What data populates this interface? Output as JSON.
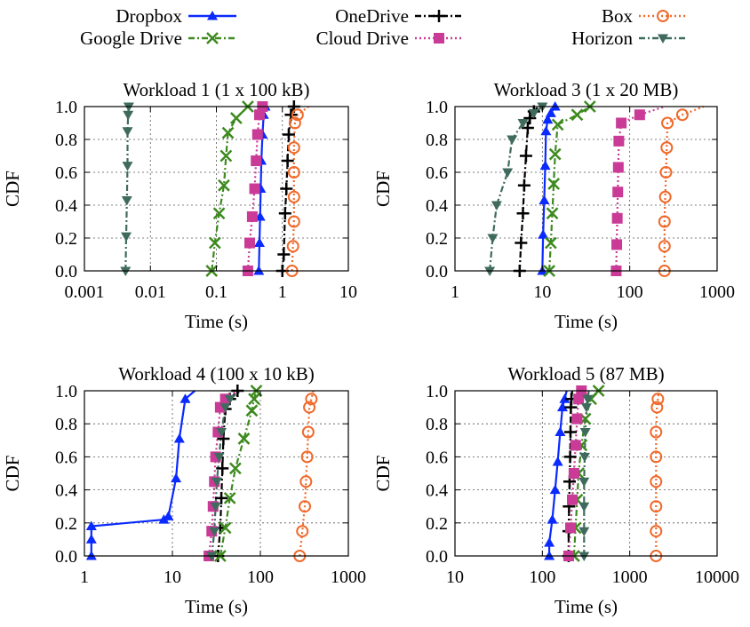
{
  "legend": {
    "items": [
      {
        "label": "Dropbox",
        "color": "#0a2aff",
        "marker": "triangle",
        "dash": "solid"
      },
      {
        "label": "OneDrive",
        "color": "#000000",
        "marker": "plus",
        "dash": "dashdot"
      },
      {
        "label": "Box",
        "color": "#f06a2c",
        "marker": "circle",
        "dash": "dotted"
      },
      {
        "label": "Google Drive",
        "color": "#3d8a1f",
        "marker": "cross",
        "dash": "dashdot"
      },
      {
        "label": "Cloud Drive",
        "color": "#c93b96",
        "marker": "square",
        "dash": "dotted"
      },
      {
        "label": "Horizon",
        "color": "#3f6b5e",
        "marker": "triangle-down",
        "dash": "dashdot"
      }
    ]
  },
  "chart_data": [
    {
      "type": "line",
      "title": "Workload 1 (1 x 100 kB)",
      "xlabel": "Time (s)",
      "ylabel": "CDF",
      "xscale": "log",
      "xlim": [
        0.001,
        10
      ],
      "ylim": [
        0,
        1
      ],
      "xticks": [
        "0.001",
        "0.01",
        "0.1",
        "1",
        "10"
      ],
      "yticks": [
        "0.0",
        "0.2",
        "0.4",
        "0.6",
        "0.8",
        "1.0"
      ],
      "grid": true,
      "series": [
        {
          "name": "Dropbox",
          "x": [
            0.44,
            0.45,
            0.46,
            0.47,
            0.48,
            0.5,
            0.52,
            0.55
          ],
          "y": [
            0.0,
            0.17,
            0.33,
            0.5,
            0.67,
            0.83,
            0.95,
            1.0
          ]
        },
        {
          "name": "OneDrive",
          "x": [
            1.0,
            1.05,
            1.1,
            1.15,
            1.2,
            1.25,
            1.35,
            1.5
          ],
          "y": [
            0.0,
            0.1,
            0.35,
            0.5,
            0.67,
            0.83,
            0.95,
            1.0
          ]
        },
        {
          "name": "Box",
          "x": [
            1.4,
            1.45,
            1.5,
            1.5,
            1.5,
            1.5,
            1.55,
            1.7,
            2.5
          ],
          "y": [
            0.0,
            0.15,
            0.3,
            0.45,
            0.6,
            0.75,
            0.9,
            0.95,
            1.0
          ]
        },
        {
          "name": "Google Drive",
          "x": [
            0.085,
            0.095,
            0.11,
            0.13,
            0.14,
            0.15,
            0.2,
            0.3
          ],
          "y": [
            0.0,
            0.17,
            0.35,
            0.52,
            0.7,
            0.84,
            0.93,
            1.0
          ]
        },
        {
          "name": "Cloud Drive",
          "x": [
            0.3,
            0.32,
            0.35,
            0.38,
            0.4,
            0.42,
            0.45,
            0.5
          ],
          "y": [
            0.0,
            0.17,
            0.33,
            0.5,
            0.67,
            0.83,
            0.95,
            1.0
          ]
        },
        {
          "name": "Horizon",
          "x": [
            0.0042,
            0.0043,
            0.0044,
            0.0045,
            0.0045,
            0.0046,
            0.0047
          ],
          "y": [
            0.0,
            0.21,
            0.43,
            0.64,
            0.85,
            0.95,
            1.0
          ]
        }
      ]
    },
    {
      "type": "line",
      "title": "Workload 3 (1 x 20 MB)",
      "xlabel": "Time (s)",
      "ylabel": "CDF",
      "xscale": "log",
      "xlim": [
        1,
        1000
      ],
      "ylim": [
        0,
        1
      ],
      "xticks": [
        "1",
        "10",
        "100",
        "1000"
      ],
      "yticks": [
        "0.0",
        "0.2",
        "0.4",
        "0.6",
        "0.8",
        "1.0"
      ],
      "grid": true,
      "series": [
        {
          "name": "Dropbox",
          "x": [
            10,
            10.2,
            10.5,
            10.8,
            11,
            11.5,
            12.5,
            14
          ],
          "y": [
            0.0,
            0.22,
            0.43,
            0.64,
            0.85,
            0.92,
            0.96,
            1.0
          ]
        },
        {
          "name": "OneDrive",
          "x": [
            5.5,
            5.7,
            6,
            6.2,
            6.5,
            6.8,
            7.2,
            8,
            9
          ],
          "y": [
            0.0,
            0.17,
            0.35,
            0.52,
            0.7,
            0.87,
            0.93,
            0.97,
            1.0
          ]
        },
        {
          "name": "Box",
          "x": [
            250,
            250,
            250,
            255,
            260,
            265,
            270,
            400,
            700
          ],
          "y": [
            0.0,
            0.15,
            0.3,
            0.45,
            0.6,
            0.75,
            0.9,
            0.95,
            1.0
          ]
        },
        {
          "name": "Google Drive",
          "x": [
            12,
            12.5,
            13,
            13.5,
            14,
            15,
            25,
            35
          ],
          "y": [
            0.0,
            0.17,
            0.35,
            0.53,
            0.71,
            0.89,
            0.95,
            1.0
          ]
        },
        {
          "name": "Cloud Drive",
          "x": [
            70,
            71,
            72,
            73,
            74,
            75,
            80,
            130,
            250
          ],
          "y": [
            0.0,
            0.16,
            0.32,
            0.48,
            0.63,
            0.79,
            0.9,
            0.95,
            1.0
          ]
        },
        {
          "name": "Horizon",
          "x": [
            2.5,
            2.7,
            3,
            4,
            4.5,
            6,
            8,
            10
          ],
          "y": [
            0.0,
            0.2,
            0.4,
            0.6,
            0.8,
            0.9,
            0.96,
            1.0
          ]
        }
      ]
    },
    {
      "type": "line",
      "title": "Workload 4 (100 x 10 kB)",
      "xlabel": "Time (s)",
      "ylabel": "CDF",
      "xscale": "log",
      "xlim": [
        1,
        1000
      ],
      "ylim": [
        0,
        1
      ],
      "xticks": [
        "1",
        "10",
        "100",
        "1000"
      ],
      "yticks": [
        "0.0",
        "0.2",
        "0.4",
        "0.6",
        "0.8",
        "1.0"
      ],
      "grid": true,
      "series": [
        {
          "name": "Dropbox",
          "x": [
            1.2,
            1.2,
            1.2,
            8,
            9,
            11,
            12,
            14,
            18
          ],
          "y": [
            0.0,
            0.1,
            0.18,
            0.22,
            0.24,
            0.47,
            0.71,
            0.95,
            1.0
          ]
        },
        {
          "name": "OneDrive",
          "x": [
            33,
            35,
            36,
            37,
            38,
            40,
            45,
            55
          ],
          "y": [
            0.0,
            0.17,
            0.35,
            0.53,
            0.71,
            0.89,
            0.95,
            1.0
          ]
        },
        {
          "name": "Box",
          "x": [
            280,
            300,
            320,
            330,
            340,
            350,
            360,
            380,
            400
          ],
          "y": [
            0.0,
            0.15,
            0.3,
            0.45,
            0.6,
            0.75,
            0.9,
            0.95,
            1.0
          ]
        },
        {
          "name": "Google Drive",
          "x": [
            35,
            40,
            45,
            52,
            65,
            80,
            85,
            90
          ],
          "y": [
            0.0,
            0.17,
            0.35,
            0.53,
            0.71,
            0.88,
            0.95,
            1.0
          ]
        },
        {
          "name": "Cloud Drive",
          "x": [
            26,
            28,
            29,
            30,
            31,
            33,
            35,
            40,
            55
          ],
          "y": [
            0.0,
            0.15,
            0.3,
            0.45,
            0.6,
            0.75,
            0.9,
            0.95,
            1.0
          ]
        },
        {
          "name": "Horizon",
          "x": [
            28,
            30,
            31,
            32,
            34,
            36,
            40,
            45,
            60
          ],
          "y": [
            0.0,
            0.15,
            0.3,
            0.45,
            0.6,
            0.75,
            0.9,
            0.95,
            1.0
          ]
        }
      ]
    },
    {
      "type": "line",
      "title": "Workload 5 (87 MB)",
      "xlabel": "Time (s)",
      "ylabel": "CDF",
      "xscale": "log",
      "xlim": [
        10,
        10000
      ],
      "ylim": [
        0,
        1
      ],
      "xticks": [
        "10",
        "100",
        "1000",
        "10000"
      ],
      "yticks": [
        "0.0",
        "0.2",
        "0.4",
        "0.6",
        "0.8",
        "1.0"
      ],
      "grid": true,
      "series": [
        {
          "name": "Dropbox",
          "x": [
            120,
            120,
            130,
            140,
            150,
            160,
            170,
            180,
            190
          ],
          "y": [
            0.0,
            0.08,
            0.22,
            0.4,
            0.57,
            0.75,
            0.9,
            0.95,
            1.0
          ]
        },
        {
          "name": "OneDrive",
          "x": [
            200,
            200,
            202,
            205,
            208,
            210,
            212,
            215,
            220
          ],
          "y": [
            0.0,
            0.15,
            0.3,
            0.45,
            0.6,
            0.75,
            0.9,
            0.95,
            1.0
          ]
        },
        {
          "name": "Box",
          "x": [
            2000,
            2000,
            2000,
            2000,
            2000,
            2000,
            2050,
            2100,
            2150
          ],
          "y": [
            0.0,
            0.15,
            0.3,
            0.45,
            0.6,
            0.75,
            0.9,
            0.95,
            1.0
          ]
        },
        {
          "name": "Google Drive",
          "x": [
            230,
            240,
            250,
            260,
            280,
            310,
            360,
            440
          ],
          "y": [
            0.0,
            0.17,
            0.34,
            0.5,
            0.67,
            0.83,
            0.95,
            1.0
          ]
        },
        {
          "name": "Cloud Drive",
          "x": [
            200,
            210,
            220,
            230,
            240,
            250,
            260,
            280
          ],
          "y": [
            0.0,
            0.17,
            0.34,
            0.5,
            0.67,
            0.83,
            0.95,
            1.0
          ]
        },
        {
          "name": "Horizon",
          "x": [
            300,
            300,
            300,
            300,
            305,
            310,
            320,
            330,
            340
          ],
          "y": [
            0.0,
            0.15,
            0.3,
            0.45,
            0.6,
            0.75,
            0.9,
            0.95,
            1.0
          ]
        }
      ]
    }
  ]
}
